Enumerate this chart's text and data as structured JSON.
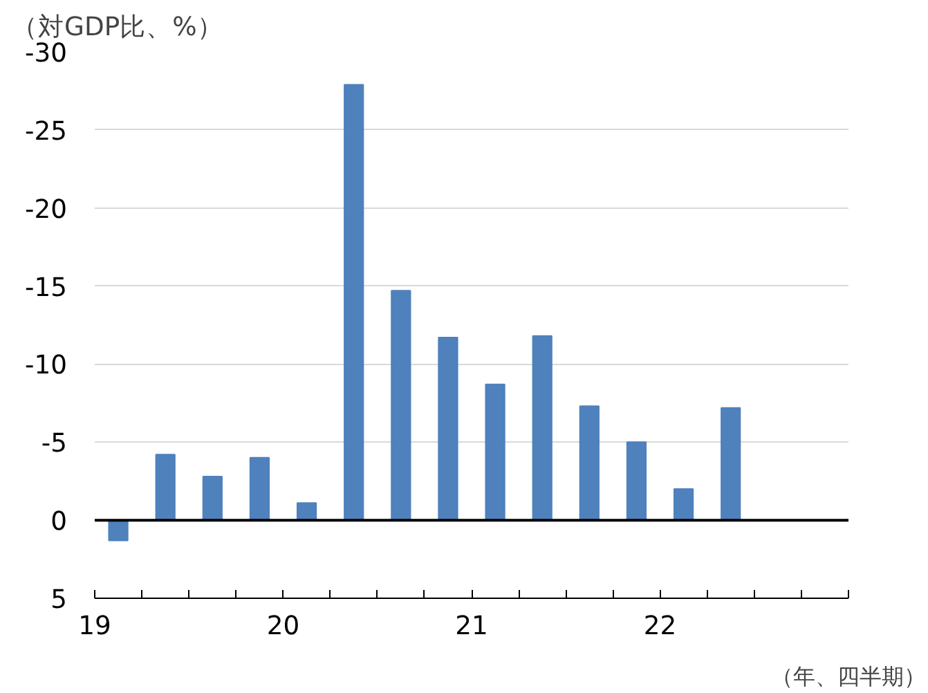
{
  "chart_data": {
    "type": "bar",
    "ylabel": "（対GDP比、%）",
    "xlabel": "（年、四半期）",
    "x": [
      2019.125,
      2019.375,
      2019.625,
      2019.875,
      2020.125,
      2020.375,
      2020.625,
      2020.875,
      2021.125,
      2021.375,
      2021.625,
      2021.875,
      2022.125,
      2022.375
    ],
    "values": [
      1.3,
      -4.2,
      -2.8,
      -4.0,
      -1.1,
      -27.9,
      -14.7,
      -11.7,
      -8.7,
      -11.8,
      -7.3,
      -5.0,
      -2.0,
      -7.2
    ],
    "color": "#4f81bd",
    "ylim": [
      5,
      -30
    ],
    "yticks": [
      5,
      0,
      -5,
      -10,
      -15,
      -20,
      -25,
      -30
    ],
    "xlim": [
      2019,
      2023
    ],
    "xticks": [
      {
        "value": 2019,
        "label": "19"
      },
      {
        "value": 2019.25,
        "label": null
      },
      {
        "value": 2019.5,
        "label": null
      },
      {
        "value": 2019.75,
        "label": null
      },
      {
        "value": 2020,
        "label": "20"
      },
      {
        "value": 2020.25,
        "label": null
      },
      {
        "value": 2020.5,
        "label": null
      },
      {
        "value": 2020.75,
        "label": null
      },
      {
        "value": 2021,
        "label": "21"
      },
      {
        "value": 2021.25,
        "label": null
      },
      {
        "value": 2021.5,
        "label": null
      },
      {
        "value": 2021.75,
        "label": null
      },
      {
        "value": 2022,
        "label": "22"
      },
      {
        "value": 2022.25,
        "label": null
      },
      {
        "value": 2022.5,
        "label": null
      },
      {
        "value": 2022.75,
        "label": null
      },
      {
        "value": 2023,
        "label": null
      }
    ],
    "grid": "y",
    "ref_lines": [
      {
        "axis": "y",
        "value": 0,
        "color": "#000000"
      }
    ]
  }
}
